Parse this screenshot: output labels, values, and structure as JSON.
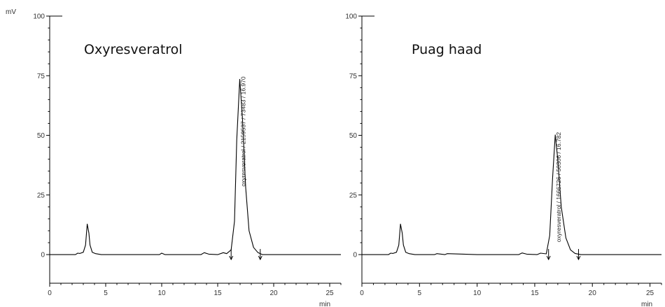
{
  "y_unit": "mV",
  "x_unit": "min",
  "chart_data": [
    {
      "type": "line",
      "title": "Oxyresveratrol",
      "xlabel": "min",
      "ylabel": "mV",
      "xlim": [
        0,
        26
      ],
      "ylim": [
        -12,
        100
      ],
      "x_ticks": [
        0,
        5,
        10,
        15,
        20,
        25
      ],
      "y_ticks": [
        0,
        25,
        50,
        75,
        100
      ],
      "grid": false,
      "series": [
        {
          "x": [
            0,
            2.3,
            2.5,
            2.7,
            3.0,
            3.2,
            3.35,
            3.5,
            3.6,
            3.8,
            4.1,
            4.6,
            6.0,
            9.8,
            10.0,
            10.3,
            13.5,
            13.8,
            14.2,
            15.0,
            15.5,
            15.8,
            16.2,
            16.5,
            16.7,
            16.97,
            17.2,
            17.5,
            17.8,
            18.2,
            18.6,
            19.0,
            19.5,
            26
          ],
          "values": [
            0,
            0,
            0.6,
            0.5,
            1.0,
            4.0,
            12.8,
            9.0,
            4.0,
            1.0,
            0.4,
            0,
            0,
            0,
            0.6,
            0,
            0,
            0.8,
            0.2,
            0,
            0.8,
            0.4,
            2.0,
            14.0,
            48.0,
            73.5,
            58.0,
            28.0,
            10.0,
            3.0,
            0.8,
            0,
            0,
            0
          ]
        }
      ],
      "peak_label": "oxyresveratrol / 2159537 / 73483 / 16.970",
      "peak_time": 16.97,
      "peak_height": 73.5,
      "integration_markers": [
        16.2,
        18.8
      ]
    },
    {
      "type": "line",
      "title": "Puag haad",
      "xlabel": "min",
      "ylabel": "mV",
      "xlim": [
        0,
        26
      ],
      "ylim": [
        -12,
        100
      ],
      "x_ticks": [
        0,
        5,
        10,
        15,
        20,
        25
      ],
      "y_ticks": [
        0,
        25,
        50,
        75,
        100
      ],
      "grid": false,
      "series": [
        {
          "x": [
            0,
            2.3,
            2.5,
            2.7,
            3.0,
            3.2,
            3.35,
            3.5,
            3.6,
            3.8,
            4.1,
            4.6,
            6.3,
            6.5,
            7.2,
            7.4,
            10.0,
            13.6,
            13.9,
            14.3,
            15.2,
            15.5,
            16.0,
            16.3,
            16.55,
            16.78,
            17.0,
            17.3,
            17.7,
            18.1,
            18.5,
            19.0,
            19.5,
            26
          ],
          "values": [
            0,
            0,
            0.6,
            0.5,
            1.0,
            4.0,
            12.8,
            9.0,
            4.0,
            1.0,
            0.4,
            0,
            0,
            0.4,
            0,
            0.4,
            0,
            0,
            0.7,
            0.2,
            0,
            0.6,
            0.3,
            8.0,
            32.0,
            50.2,
            40.0,
            20.0,
            7.0,
            2.0,
            0.5,
            0,
            0,
            0
          ]
        }
      ],
      "peak_label": "oxyresveratrol / 1666726 / 50306 / 16.782",
      "peak_time": 16.78,
      "peak_height": 50.2,
      "integration_markers": [
        16.2,
        18.8
      ]
    }
  ]
}
